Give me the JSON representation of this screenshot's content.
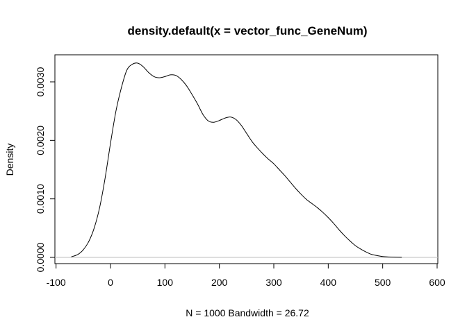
{
  "chart_data": {
    "type": "line",
    "title": "density.default(x = vector_func_GeneNum)",
    "xlabel": "N = 1000   Bandwidth = 26.72",
    "ylabel": "Density",
    "xlim": [
      -100,
      600
    ],
    "ylim": [
      0,
      0.0033
    ],
    "x_ticks": [
      -100,
      0,
      100,
      200,
      300,
      400,
      500,
      600
    ],
    "x_tick_labels": [
      "-100",
      "0",
      "100",
      "200",
      "300",
      "400",
      "500",
      "600"
    ],
    "y_ticks": [
      0,
      0.001,
      0.002,
      0.003
    ],
    "y_tick_labels": [
      "0.0000",
      "0.0010",
      "0.0020",
      "0.0030"
    ],
    "grid": false,
    "baseline": 0,
    "colors": {
      "line": "#000000",
      "baseline": "#bebebe",
      "frame": "#000000"
    },
    "series": [
      {
        "x": [
          -72,
          -60,
          -50,
          -40,
          -30,
          -20,
          -10,
          0,
          10,
          20,
          30,
          40,
          50,
          60,
          70,
          80,
          90,
          100,
          110,
          120,
          130,
          140,
          150,
          160,
          170,
          180,
          190,
          200,
          210,
          220,
          230,
          240,
          250,
          260,
          270,
          280,
          290,
          300,
          310,
          320,
          330,
          340,
          350,
          360,
          370,
          380,
          390,
          400,
          410,
          420,
          430,
          440,
          450,
          460,
          470,
          480,
          490,
          500,
          510,
          520,
          535
        ],
        "y": [
          1e-05,
          5e-05,
          0.00013,
          0.00027,
          0.0005,
          0.00085,
          0.00135,
          0.00195,
          0.0025,
          0.0029,
          0.0032,
          0.0033,
          0.00332,
          0.00326,
          0.00316,
          0.00309,
          0.00307,
          0.00309,
          0.00312,
          0.00311,
          0.00304,
          0.00293,
          0.00278,
          0.00262,
          0.00244,
          0.00233,
          0.00231,
          0.00234,
          0.00238,
          0.0024,
          0.00236,
          0.00226,
          0.00212,
          0.00198,
          0.00187,
          0.00177,
          0.00168,
          0.0016,
          0.0015,
          0.0014,
          0.00129,
          0.00118,
          0.00108,
          0.00099,
          0.00092,
          0.00085,
          0.00077,
          0.00068,
          0.00058,
          0.00047,
          0.00037,
          0.00028,
          0.0002,
          0.00014,
          9e-05,
          5e-05,
          3e-05,
          1.5e-05,
          8e-06,
          4e-06,
          1e-06
        ]
      }
    ]
  }
}
